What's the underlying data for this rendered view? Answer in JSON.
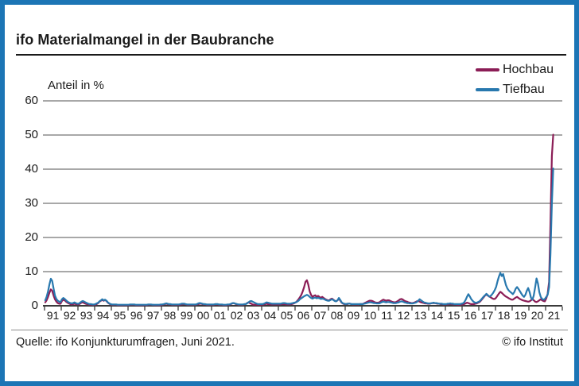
{
  "window": {
    "frame_color": "#1C75B5",
    "background": "#ffffff"
  },
  "header": {
    "title": "ifo Materialmangel in der Baubranche"
  },
  "legend": [
    {
      "label": "Hochbau",
      "color": "#8B1D56"
    },
    {
      "label": "Tiefbau",
      "color": "#2878AE"
    }
  ],
  "footer": {
    "source": "Quelle: ifo Konjunkturumfragen, Juni 2021.",
    "copyright": "© ifo Institut"
  },
  "chart_data": {
    "type": "line",
    "title": "ifo Materialmangel in der Baubranche",
    "ylabel": "Anteil in %",
    "ylim": [
      0,
      60
    ],
    "yticks": [
      0,
      10,
      20,
      30,
      40,
      50,
      60
    ],
    "grid": "horizontal",
    "legend_position": "top-right",
    "x_unit": "month",
    "x_start_year": 1991,
    "x_end": "June 2021",
    "xticklabels": [
      "91",
      "92",
      "93",
      "94",
      "95",
      "96",
      "97",
      "98",
      "99",
      "00",
      "01",
      "02",
      "03",
      "04",
      "05",
      "06",
      "07",
      "08",
      "09",
      "10",
      "11",
      "12",
      "13",
      "14",
      "15",
      "16",
      "17",
      "18",
      "19",
      "20",
      "21"
    ],
    "colors": {
      "grid": "#747474",
      "axis": "#3a3a3a"
    },
    "series": [
      {
        "name": "Hochbau",
        "color": "#8B1D56",
        "values": [
          1.0,
          1.6,
          2.6,
          3.8,
          4.8,
          4.4,
          3.0,
          1.9,
          1.2,
          0.8,
          0.6,
          0.6,
          1.4,
          1.8,
          1.6,
          1.2,
          0.9,
          0.7,
          0.5,
          0.4,
          0.5,
          0.6,
          0.5,
          0.4,
          0.4,
          0.6,
          0.9,
          1.0,
          0.8,
          0.6,
          0.5,
          0.4,
          0.3,
          0.3,
          0.3,
          0.3,
          0.3,
          0.5,
          0.8,
          1.2,
          1.5,
          1.7,
          1.5,
          1.7,
          1.4,
          0.9,
          0.6,
          0.4,
          0.3,
          0.3,
          0.3,
          0.3,
          0.2,
          0.2,
          0.2,
          0.2,
          0.2,
          0.2,
          0.2,
          0.2,
          0.2,
          0.3,
          0.3,
          0.3,
          0.3,
          0.2,
          0.2,
          0.2,
          0.2,
          0.2,
          0.2,
          0.2,
          0.2,
          0.2,
          0.3,
          0.3,
          0.3,
          0.3,
          0.2,
          0.2,
          0.2,
          0.2,
          0.2,
          0.2,
          0.3,
          0.4,
          0.5,
          0.6,
          0.5,
          0.4,
          0.4,
          0.3,
          0.3,
          0.3,
          0.3,
          0.3,
          0.3,
          0.3,
          0.4,
          0.5,
          0.5,
          0.4,
          0.3,
          0.3,
          0.3,
          0.3,
          0.3,
          0.3,
          0.3,
          0.4,
          0.5,
          0.6,
          0.6,
          0.5,
          0.4,
          0.4,
          0.3,
          0.3,
          0.3,
          0.3,
          0.3,
          0.3,
          0.4,
          0.4,
          0.4,
          0.3,
          0.3,
          0.3,
          0.2,
          0.2,
          0.2,
          0.3,
          0.3,
          0.4,
          0.6,
          0.8,
          0.7,
          0.5,
          0.4,
          0.3,
          0.3,
          0.3,
          0.3,
          0.4,
          0.5,
          0.8,
          1.0,
          0.8,
          0.6,
          0.4,
          0.3,
          0.3,
          0.3,
          0.3,
          0.3,
          0.3,
          0.3,
          0.4,
          0.5,
          0.6,
          0.5,
          0.5,
          0.4,
          0.4,
          0.4,
          0.4,
          0.4,
          0.4,
          0.4,
          0.4,
          0.5,
          0.5,
          0.5,
          0.4,
          0.4,
          0.4,
          0.4,
          0.5,
          0.6,
          0.8,
          1.0,
          1.4,
          1.9,
          2.5,
          3.2,
          4.2,
          5.5,
          7.0,
          7.5,
          6.2,
          4.2,
          3.2,
          2.6,
          2.9,
          3.1,
          2.6,
          2.9,
          2.6,
          2.3,
          2.6,
          2.3,
          2.0,
          1.8,
          1.6,
          1.6,
          1.9,
          2.1,
          1.8,
          1.5,
          1.3,
          1.6,
          2.1,
          1.5,
          0.9,
          0.6,
          0.5,
          0.5,
          0.5,
          0.6,
          0.6,
          0.5,
          0.4,
          0.4,
          0.4,
          0.4,
          0.4,
          0.5,
          0.5,
          0.5,
          0.7,
          0.9,
          1.1,
          1.3,
          1.5,
          1.5,
          1.4,
          1.2,
          1.0,
          0.9,
          0.9,
          1.0,
          1.3,
          1.6,
          1.8,
          1.6,
          1.5,
          1.6,
          1.6,
          1.4,
          1.2,
          1.1,
          1.0,
          1.1,
          1.3,
          1.6,
          1.9,
          2.0,
          1.8,
          1.5,
          1.3,
          1.2,
          1.0,
          0.9,
          0.8,
          0.8,
          0.9,
          1.1,
          1.3,
          1.4,
          1.2,
          1.0,
          0.9,
          0.8,
          0.7,
          0.7,
          0.6,
          0.6,
          0.7,
          0.8,
          0.8,
          0.8,
          0.7,
          0.6,
          0.6,
          0.5,
          0.5,
          0.4,
          0.4,
          0.4,
          0.4,
          0.5,
          0.5,
          0.5,
          0.4,
          0.4,
          0.4,
          0.3,
          0.3,
          0.3,
          0.4,
          0.4,
          0.5,
          0.7,
          0.9,
          0.8,
          0.6,
          0.5,
          0.5,
          0.5,
          0.6,
          0.7,
          0.9,
          1.1,
          1.5,
          2.0,
          2.5,
          3.0,
          3.3,
          3.0,
          2.7,
          2.5,
          2.2,
          2.0,
          2.0,
          2.4,
          3.0,
          3.6,
          4.1,
          3.8,
          3.4,
          3.0,
          2.7,
          2.5,
          2.2,
          2.0,
          1.8,
          1.8,
          2.1,
          2.4,
          2.6,
          2.3,
          2.0,
          1.8,
          1.6,
          1.5,
          1.4,
          1.3,
          1.2,
          1.3,
          1.6,
          1.9,
          1.6,
          1.2,
          1.1,
          1.3,
          1.6,
          1.9,
          1.6,
          1.4,
          1.3,
          2.2,
          3.5,
          7.0,
          23.9,
          43.9,
          50.1
        ]
      },
      {
        "name": "Tiefbau",
        "color": "#2878AE",
        "values": [
          1.6,
          2.6,
          4.2,
          6.2,
          7.9,
          7.3,
          5.0,
          3.0,
          2.0,
          1.5,
          1.2,
          1.1,
          1.9,
          2.3,
          2.0,
          1.6,
          1.2,
          1.0,
          0.8,
          0.7,
          0.8,
          1.0,
          0.8,
          0.6,
          0.6,
          0.9,
          1.2,
          1.4,
          1.2,
          1.0,
          0.8,
          0.6,
          0.5,
          0.5,
          0.4,
          0.4,
          0.5,
          0.7,
          0.9,
          1.3,
          1.6,
          1.9,
          1.6,
          1.8,
          1.5,
          1.0,
          0.7,
          0.5,
          0.4,
          0.4,
          0.4,
          0.4,
          0.3,
          0.3,
          0.3,
          0.3,
          0.3,
          0.3,
          0.3,
          0.3,
          0.3,
          0.4,
          0.4,
          0.4,
          0.4,
          0.3,
          0.3,
          0.3,
          0.3,
          0.3,
          0.3,
          0.3,
          0.3,
          0.3,
          0.4,
          0.4,
          0.4,
          0.3,
          0.3,
          0.3,
          0.3,
          0.3,
          0.3,
          0.4,
          0.4,
          0.5,
          0.6,
          0.7,
          0.6,
          0.5,
          0.5,
          0.4,
          0.4,
          0.4,
          0.4,
          0.4,
          0.4,
          0.5,
          0.6,
          0.6,
          0.6,
          0.5,
          0.4,
          0.4,
          0.4,
          0.4,
          0.4,
          0.4,
          0.4,
          0.5,
          0.7,
          0.8,
          0.7,
          0.6,
          0.5,
          0.5,
          0.4,
          0.4,
          0.4,
          0.4,
          0.4,
          0.4,
          0.5,
          0.5,
          0.5,
          0.4,
          0.4,
          0.4,
          0.3,
          0.3,
          0.3,
          0.4,
          0.4,
          0.5,
          0.7,
          0.8,
          0.7,
          0.6,
          0.5,
          0.4,
          0.4,
          0.4,
          0.4,
          0.5,
          0.5,
          0.7,
          1.0,
          1.3,
          1.4,
          1.2,
          1.0,
          0.8,
          0.6,
          0.5,
          0.5,
          0.5,
          0.5,
          0.6,
          0.8,
          1.0,
          0.9,
          0.8,
          0.7,
          0.6,
          0.6,
          0.6,
          0.6,
          0.6,
          0.6,
          0.6,
          0.7,
          0.8,
          0.8,
          0.7,
          0.6,
          0.6,
          0.6,
          0.7,
          0.8,
          0.9,
          1.0,
          1.2,
          1.5,
          1.9,
          2.2,
          2.5,
          2.8,
          3.0,
          3.2,
          3.0,
          2.6,
          2.3,
          2.1,
          2.3,
          2.4,
          2.2,
          2.3,
          2.2,
          2.0,
          2.1,
          2.0,
          1.8,
          1.6,
          1.5,
          1.5,
          1.7,
          1.9,
          1.7,
          1.4,
          1.3,
          1.6,
          2.3,
          1.7,
          1.0,
          0.7,
          0.6,
          0.5,
          0.6,
          0.6,
          0.6,
          0.5,
          0.5,
          0.5,
          0.5,
          0.5,
          0.5,
          0.5,
          0.5,
          0.5,
          0.6,
          0.7,
          0.8,
          0.9,
          1.0,
          1.0,
          0.9,
          0.8,
          0.8,
          0.7,
          0.7,
          0.7,
          0.9,
          1.1,
          1.2,
          1.1,
          1.0,
          1.1,
          1.1,
          1.0,
          0.9,
          0.8,
          0.8,
          0.8,
          0.9,
          1.0,
          1.2,
          1.3,
          1.2,
          1.0,
          0.9,
          0.8,
          0.8,
          0.7,
          0.7,
          0.7,
          0.8,
          0.9,
          1.1,
          1.5,
          1.9,
          1.6,
          1.3,
          1.0,
          0.9,
          0.8,
          0.7,
          0.7,
          0.7,
          0.8,
          0.9,
          0.8,
          0.8,
          0.7,
          0.6,
          0.6,
          0.6,
          0.5,
          0.5,
          0.5,
          0.6,
          0.6,
          0.7,
          0.6,
          0.6,
          0.5,
          0.5,
          0.5,
          0.5,
          0.5,
          0.6,
          0.7,
          1.0,
          1.7,
          2.6,
          3.4,
          2.8,
          2.0,
          1.5,
          1.1,
          0.9,
          0.9,
          1.1,
          1.3,
          1.7,
          2.2,
          2.7,
          3.1,
          3.5,
          3.1,
          2.7,
          2.9,
          3.3,
          3.9,
          4.6,
          5.6,
          7.2,
          8.6,
          9.6,
          8.7,
          9.3,
          7.6,
          6.1,
          5.1,
          4.5,
          4.1,
          3.8,
          3.4,
          4.0,
          5.0,
          5.5,
          4.9,
          4.3,
          3.6,
          3.0,
          2.6,
          3.2,
          4.4,
          5.2,
          4.0,
          2.4,
          1.8,
          3.0,
          5.5,
          8.0,
          6.5,
          4.0,
          2.6,
          2.0,
          1.8,
          2.0,
          2.6,
          3.2,
          5.5,
          15.0,
          30.0,
          40.2
        ]
      }
    ]
  }
}
